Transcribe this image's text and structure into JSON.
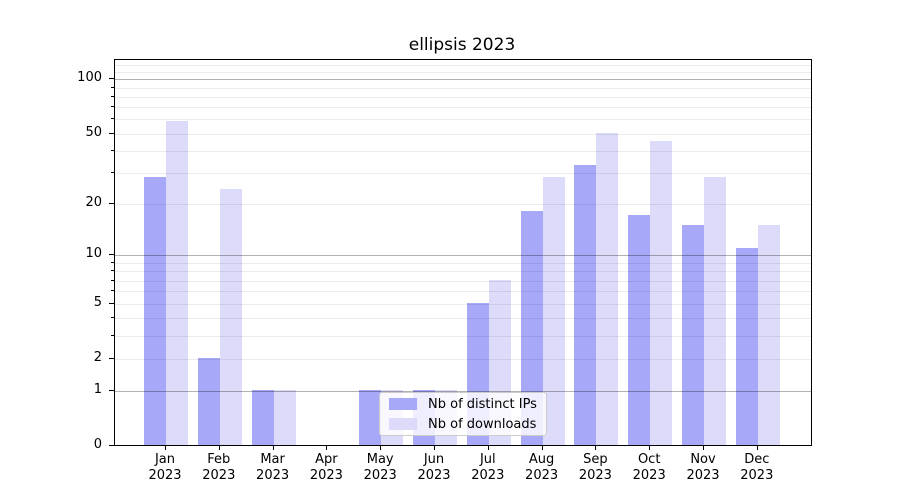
{
  "title": "ellipsis 2023",
  "chart_data": {
    "type": "bar",
    "title": "ellipsis 2023",
    "categories": [
      "Jan 2023",
      "Feb 2023",
      "Mar 2023",
      "Apr 2023",
      "May 2023",
      "Jun 2023",
      "Jul 2023",
      "Aug 2023",
      "Sep 2023",
      "Oct 2023",
      "Nov 2023",
      "Dec 2023"
    ],
    "x_tick_month": [
      "Jan",
      "Feb",
      "Mar",
      "Apr",
      "May",
      "Jun",
      "Jul",
      "Aug",
      "Sep",
      "Oct",
      "Nov",
      "Dec"
    ],
    "x_tick_year": "2023",
    "series": [
      {
        "name": "Nb of distinct IPs",
        "color": "#a8a8f8",
        "values": [
          28,
          2,
          1,
          0,
          1,
          1,
          5,
          18,
          33,
          17,
          15,
          11
        ]
      },
      {
        "name": "Nb of downloads",
        "color": "#dcdcfa",
        "values": [
          58,
          24,
          1,
          0,
          1,
          1,
          7,
          28,
          50,
          45,
          28,
          15
        ]
      }
    ],
    "yscale": "log1p",
    "ylim": [
      0,
      125
    ],
    "y_tick_values": [
      0,
      1,
      2,
      5,
      10,
      20,
      50,
      100
    ],
    "y_major_gridlines": [
      1,
      10,
      100
    ],
    "y_minor_gridlines": [
      2,
      3,
      4,
      5,
      6,
      7,
      8,
      9,
      20,
      30,
      40,
      50,
      60,
      70,
      80,
      90,
      110,
      120
    ],
    "xlabel": "",
    "ylabel": "",
    "grid": true,
    "legend": {
      "position": "inside-bottom-center",
      "entries": [
        "Nb of distinct IPs",
        "Nb of downloads"
      ]
    }
  },
  "colors": {
    "background": "#ffffff",
    "bar_distinct_ips": "#a8a8f8",
    "bar_downloads": "#dcdcfa",
    "major_grid": "#b3b3b3",
    "minor_grid": "#ececec",
    "spine": "#000000",
    "text": "#000000",
    "legend_border": "#cccccc"
  }
}
